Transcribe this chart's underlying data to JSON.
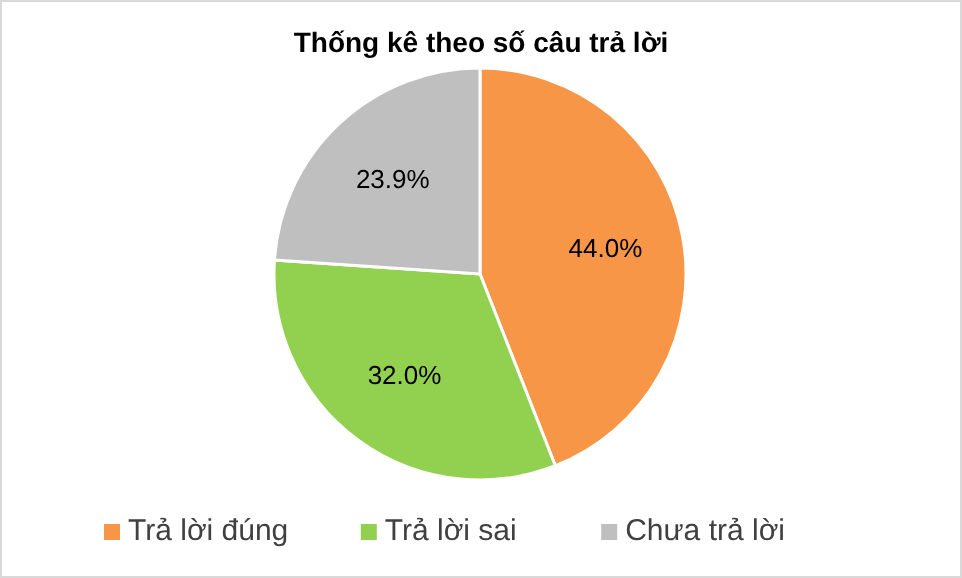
{
  "chart_data": {
    "type": "pie",
    "title": "Thống kê theo số câu trả lời",
    "categories": [
      "Trả lời đúng",
      "Trả lời sai",
      "Chưa trả lời"
    ],
    "values": [
      44.0,
      32.0,
      23.9
    ],
    "colors": [
      "#f79646",
      "#92d050",
      "#bfbfbf"
    ],
    "value_labels": [
      "44.0%",
      "32.0%",
      "23.9%"
    ],
    "legend": "bottom"
  }
}
